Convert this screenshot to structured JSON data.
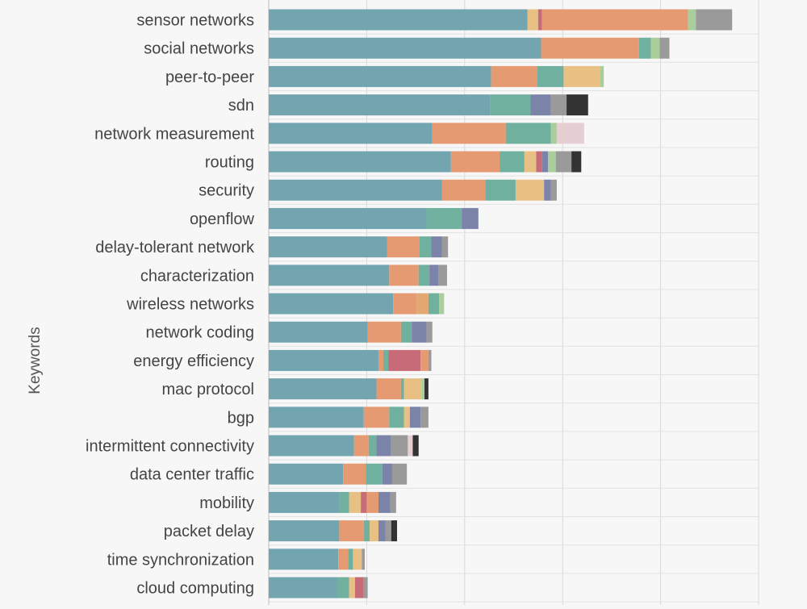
{
  "chart_data": {
    "type": "bar",
    "orientation": "horizontal",
    "stacked": true,
    "ylabel": "Keywords",
    "xlabel": "",
    "xlim": [
      0,
      500
    ],
    "grid": true,
    "categories": [
      "sensor networks",
      "social networks",
      "peer-to-peer",
      "sdn",
      "network measurement",
      "routing",
      "security",
      "openflow",
      "delay-tolerant network",
      "characterization",
      "wireless networks",
      "network coding",
      "energy efficiency",
      "mac protocol",
      "bgp",
      "intermittent connectivity",
      "data center traffic",
      "mobility",
      "packet delay",
      "time synchronization",
      "cloud computing"
    ],
    "series": [
      {
        "color": "#72a5b0",
        "values": [
          264,
          278,
          227,
          226,
          167,
          186,
          177,
          161,
          121,
          123,
          127,
          101,
          112,
          110,
          97,
          87,
          76,
          72,
          72,
          71,
          70
        ]
      },
      {
        "color": "#e69a72",
        "values": [
          0,
          100,
          47,
          0,
          75,
          50,
          44,
          0,
          33,
          30,
          24,
          34,
          5,
          25,
          26,
          15,
          23,
          0,
          25,
          10,
          0
        ]
      },
      {
        "color": "#e2a870",
        "values": [
          0,
          0,
          0,
          0,
          0,
          0,
          0,
          0,
          0,
          0,
          12,
          0,
          0,
          0,
          0,
          0,
          0,
          0,
          0,
          0,
          0
        ]
      },
      {
        "color": "#e9c083",
        "values": [
          11,
          0,
          0,
          0,
          0,
          0,
          0,
          0,
          0,
          0,
          0,
          0,
          0,
          0,
          0,
          0,
          0,
          0,
          0,
          0,
          0
        ]
      },
      {
        "color": "#c76b78",
        "values": [
          4,
          0,
          0,
          0,
          0,
          0,
          0,
          0,
          0,
          0,
          0,
          0,
          0,
          0,
          0,
          0,
          0,
          0,
          0,
          0,
          0
        ]
      },
      {
        "color": "#e69a72",
        "values": [
          149,
          0,
          0,
          0,
          0,
          0,
          0,
          0,
          0,
          0,
          0,
          0,
          0,
          0,
          0,
          0,
          0,
          0,
          0,
          0,
          0
        ]
      },
      {
        "color": "#a8cf9b",
        "values": [
          8,
          0,
          0,
          0,
          0,
          0,
          0,
          0,
          0,
          0,
          0,
          0,
          0,
          0,
          0,
          0,
          0,
          0,
          0,
          0,
          0
        ]
      },
      {
        "color": "#9a9a9a",
        "values": [
          37,
          0,
          0,
          0,
          0,
          0,
          0,
          0,
          0,
          0,
          0,
          0,
          0,
          0,
          0,
          0,
          0,
          0,
          0,
          0,
          0
        ]
      },
      {
        "color": "#6fb09f",
        "values": [
          0,
          12,
          27,
          41,
          46,
          25,
          31,
          36,
          12,
          11,
          11,
          11,
          5,
          3,
          15,
          8,
          17,
          10,
          6,
          5,
          12
        ]
      },
      {
        "color": "#a8cf9b",
        "values": [
          0,
          9,
          0,
          0,
          0,
          0,
          0,
          0,
          0,
          0,
          5,
          0,
          0,
          0,
          0,
          0,
          0,
          0,
          0,
          0,
          0
        ]
      },
      {
        "color": "#e9c083",
        "values": [
          0,
          0,
          37,
          0,
          0,
          12,
          29,
          0,
          0,
          0,
          0,
          0,
          0,
          18,
          6,
          0,
          0,
          12,
          9,
          9,
          6
        ]
      },
      {
        "color": "#a8cf9b",
        "values": [
          0,
          0,
          4,
          0,
          6,
          0,
          0,
          0,
          0,
          0,
          0,
          0,
          0,
          3,
          0,
          0,
          0,
          0,
          0,
          0,
          0
        ]
      },
      {
        "color": "#c76b78",
        "values": [
          0,
          0,
          0,
          0,
          0,
          6,
          0,
          0,
          0,
          0,
          0,
          0,
          33,
          0,
          0,
          0,
          0,
          6,
          0,
          0,
          9
        ]
      },
      {
        "color": "#e69a72",
        "values": [
          0,
          0,
          0,
          0,
          0,
          0,
          0,
          0,
          0,
          0,
          0,
          0,
          8,
          0,
          0,
          0,
          0,
          12,
          0,
          0,
          0
        ]
      },
      {
        "color": "#7b84a8",
        "values": [
          0,
          0,
          0,
          21,
          0,
          6,
          7,
          17,
          11,
          9,
          0,
          15,
          0,
          0,
          11,
          15,
          10,
          12,
          7,
          0,
          0
        ]
      },
      {
        "color": "#a8cf9b",
        "values": [
          0,
          0,
          0,
          0,
          0,
          8,
          0,
          0,
          0,
          0,
          0,
          0,
          0,
          0,
          0,
          0,
          0,
          0,
          0,
          0,
          0
        ]
      },
      {
        "color": "#9a9a9a",
        "values": [
          0,
          10,
          0,
          16,
          0,
          16,
          6,
          0,
          6,
          9,
          0,
          6,
          3,
          0,
          8,
          17,
          15,
          6,
          6,
          3,
          4
        ]
      },
      {
        "color": "#e6cfd3",
        "values": [
          0,
          0,
          0,
          0,
          28,
          0,
          0,
          0,
          0,
          0,
          0,
          0,
          0,
          0,
          0,
          5,
          0,
          0,
          0,
          0,
          0
        ]
      },
      {
        "color": "#333333",
        "values": [
          0,
          0,
          0,
          22,
          0,
          10,
          0,
          0,
          0,
          0,
          0,
          0,
          0,
          4,
          0,
          6,
          0,
          0,
          6,
          0,
          0
        ]
      }
    ]
  }
}
